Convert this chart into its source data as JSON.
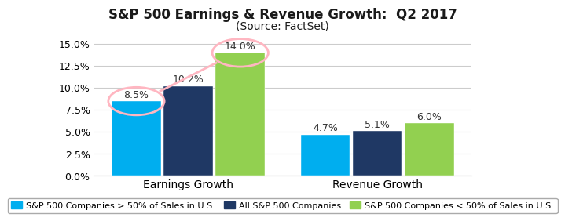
{
  "title": "S&P 500 Earnings & Revenue Growth:  Q2 2017",
  "subtitle": "(Source: FactSet)",
  "categories": [
    "Earnings Growth",
    "Revenue Growth"
  ],
  "series": [
    {
      "name": "S&P 500 Companies > 50% of Sales in U.S.",
      "color": "#00AEEF",
      "values": [
        8.5,
        4.7
      ]
    },
    {
      "name": "All S&P 500 Companies",
      "color": "#1F3864",
      "values": [
        10.2,
        5.1
      ]
    },
    {
      "name": "S&P 500 Companies < 50% of Sales in U.S.",
      "color": "#92D050",
      "values": [
        14.0,
        6.0
      ]
    }
  ],
  "ylim": [
    0,
    15.5
  ],
  "yticks": [
    0.0,
    2.5,
    5.0,
    7.5,
    10.0,
    12.5,
    15.0
  ],
  "ytick_labels": [
    "0.0%",
    "2.5%",
    "5.0%",
    "7.5%",
    "10.0%",
    "12.5%",
    "15.0%"
  ],
  "bar_width": 0.55,
  "group_centers": [
    1.0,
    3.0
  ],
  "background_color": "#FFFFFF",
  "grid_color": "#CCCCCC",
  "title_fontsize": 12,
  "subtitle_fontsize": 10,
  "tick_fontsize": 9,
  "legend_fontsize": 8,
  "annotation_fontsize": 9,
  "circle_color": "#FFB6C1",
  "circle_lw": 2.0
}
